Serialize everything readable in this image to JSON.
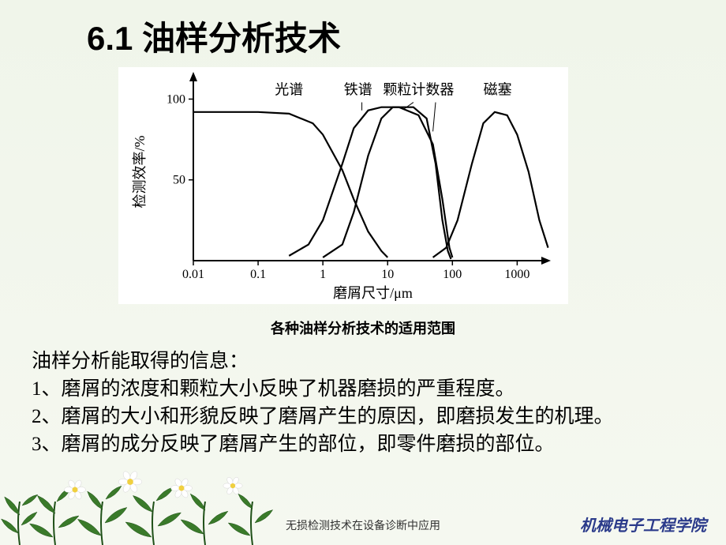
{
  "title": "6.1 油样分析技术",
  "chart": {
    "type": "line",
    "ylabel": "检测效率/%",
    "xlabel": "磨屑尺寸/μm",
    "xscale": "log",
    "xticks": [
      0.01,
      0.1,
      1,
      10,
      100,
      1000
    ],
    "xtick_labels": [
      "0.01",
      "0.1",
      "1",
      "10",
      "100",
      "1000"
    ],
    "yticks": [
      50,
      100
    ],
    "ytick_labels": [
      "50",
      "100"
    ],
    "ylim": [
      0,
      110
    ],
    "background_color": "#ffffff",
    "axis_color": "#000000",
    "line_color": "#000000",
    "line_width": 2.2,
    "label_fontsize": 18,
    "tick_fontsize": 16,
    "curve_labels": {
      "spectro": "光谱",
      "ferro": "铁谱",
      "particle": "颗粒计数器",
      "magnetic": "磁塞"
    },
    "curves": {
      "spectro": [
        [
          0.01,
          92
        ],
        [
          0.03,
          92
        ],
        [
          0.1,
          92
        ],
        [
          0.3,
          91
        ],
        [
          0.7,
          85
        ],
        [
          1,
          78
        ],
        [
          2,
          56
        ],
        [
          3,
          38
        ],
        [
          5,
          18
        ],
        [
          8,
          6
        ],
        [
          10,
          2
        ]
      ],
      "ferro": [
        [
          0.3,
          3
        ],
        [
          0.6,
          10
        ],
        [
          1,
          25
        ],
        [
          2,
          60
        ],
        [
          3,
          82
        ],
        [
          5,
          93
        ],
        [
          8,
          95
        ],
        [
          15,
          95
        ],
        [
          30,
          90
        ],
        [
          50,
          72
        ],
        [
          70,
          38
        ],
        [
          90,
          8
        ],
        [
          100,
          2
        ]
      ],
      "particle": [
        [
          1,
          2
        ],
        [
          2,
          10
        ],
        [
          3,
          30
        ],
        [
          5,
          65
        ],
        [
          8,
          88
        ],
        [
          12,
          95
        ],
        [
          25,
          95
        ],
        [
          40,
          88
        ],
        [
          55,
          60
        ],
        [
          70,
          25
        ],
        [
          85,
          6
        ],
        [
          95,
          1
        ]
      ],
      "magnetic": [
        [
          50,
          2
        ],
        [
          80,
          8
        ],
        [
          120,
          25
        ],
        [
          200,
          60
        ],
        [
          300,
          85
        ],
        [
          450,
          92
        ],
        [
          700,
          90
        ],
        [
          1000,
          78
        ],
        [
          1500,
          55
        ],
        [
          2200,
          25
        ],
        [
          3000,
          8
        ]
      ]
    }
  },
  "caption": "各种油样分析技术的适用范围",
  "body": {
    "intro": "油样分析能取得的信息：",
    "p1": "1、磨屑的浓度和颗粒大小反映了机器磨损的严重程度。",
    "p2": "2、磨屑的大小和形貌反映了磨屑产生的原因，即磨损发生的机理。",
    "p3": "3、磨屑的成分反映了磨屑产生的部位，即零件磨损的部位。"
  },
  "footer": {
    "center": "无损检测技术在设备诊断中应用",
    "right": "机械电子工程学院"
  },
  "decor": {
    "leaf_fill": "#3a7a2a",
    "leaf_dark": "#1f5018",
    "flower_white": "#ffffff",
    "flower_center": "#f0d040"
  }
}
